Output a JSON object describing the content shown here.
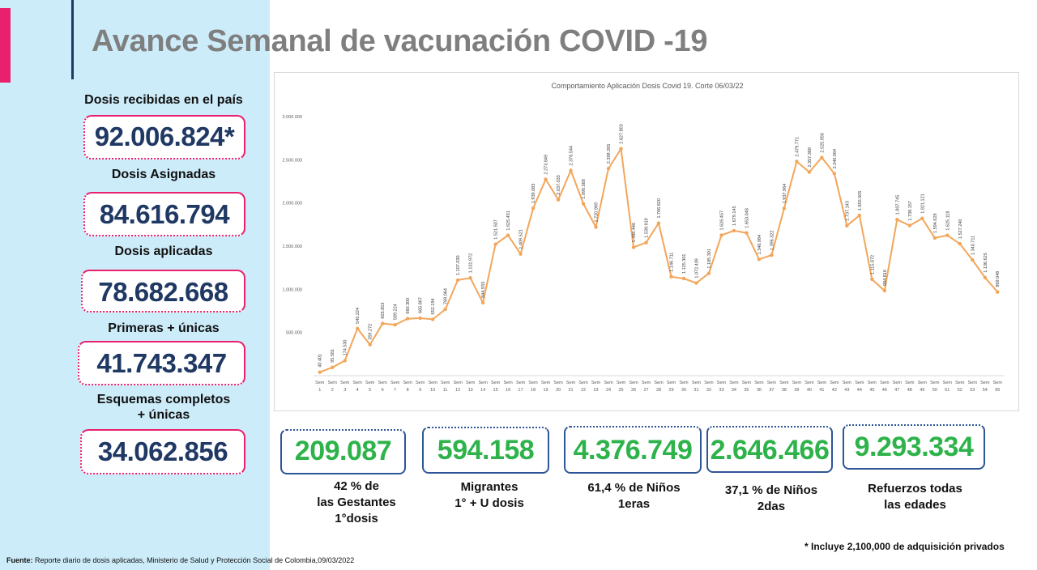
{
  "page": {
    "title": "Avance Semanal de vacunación COVID -19",
    "footnote": "* Incluye 2,100,000 de adquisición privados",
    "source_label": "Fuente:",
    "source_text": " Reporte diario de dosis aplicadas, Ministerio de Salud y Protección Social de Colombia,09/03/2022"
  },
  "colors": {
    "accent": "#e8206e",
    "panel": "#cdecfa",
    "line": "#f2a65a",
    "green": "#2db34a",
    "navy": "#1f3864"
  },
  "stats": [
    {
      "label": "Dosis recibidas en el país",
      "value": "92.006.824*"
    },
    {
      "label": "Dosis Asignadas",
      "value": "84.616.794"
    },
    {
      "label": "Dosis aplicadas",
      "value": "78.682.668"
    },
    {
      "label": "Primeras + únicas",
      "value": "41.743.347"
    },
    {
      "label_line1": "Esquemas completos",
      "label_line2": "+ únicas",
      "value": "34.062.856"
    }
  ],
  "bottom_stats": [
    {
      "value": "209.087",
      "line1": "42 %  de",
      "line2": "las Gestantes",
      "line3": "1°dosis"
    },
    {
      "value": "594.158",
      "line1": "Migrantes",
      "line2": "1° + U dosis"
    },
    {
      "value": "4.376.749",
      "line1": "61,4 % de Niños",
      "line2": "1eras"
    },
    {
      "value": "2.646.466",
      "line1": "37,1 %  de Niños",
      "line2": "2das"
    },
    {
      "value": "9.293.334",
      "line1": "Refuerzos todas",
      "line2": "las edades"
    }
  ],
  "chart_data": {
    "type": "line",
    "title": "Comportamiento Aplicación Dosis Covid 19. Corte 06/03/22",
    "categories": [
      "Sem 1",
      "Sem 2",
      "Sem 3",
      "Sem 4",
      "Sem 5",
      "Sem 6",
      "Sem 7",
      "Sem 8",
      "Sem 9",
      "Sem 10",
      "Sem 11",
      "Sem 12",
      "Sem 13",
      "Sem 14",
      "Sem 15",
      "Sem 16",
      "Sem 17",
      "Sem 18",
      "Sem 19",
      "Sem 20",
      "Sem 21",
      "Sem 22",
      "Sem 23",
      "Sem 24",
      "Sem 25",
      "Sem 26",
      "Sem 27",
      "Sem 28",
      "Sem 29",
      "Sem 30",
      "Sem 31",
      "Sem 32",
      "Sem 33",
      "Sem 34",
      "Sem 35",
      "Sem 36",
      "Sem 37",
      "Sem 38",
      "Sem 39",
      "Sem 40",
      "Sem 41",
      "Sem 42",
      "Sem 43",
      "Sem 44",
      "Sem 45",
      "Sem 46",
      "Sem 47",
      "Sem 48",
      "Sem 49",
      "Sem 50",
      "Sem 51",
      "Sem 52",
      "Sem 53",
      "Sem 54",
      "Sem 55"
    ],
    "tick_top": "Sem",
    "values": [
      40401,
      95581,
      174530,
      545224,
      359272,
      603853,
      589224,
      660300,
      665867,
      652194,
      769064,
      1107030,
      1131972,
      844933,
      1521507,
      1625451,
      1409521,
      1939083,
      2273849,
      2037033,
      2376544,
      1990568,
      1720969,
      2398265,
      2627803,
      1486446,
      1539919,
      1766820,
      1146711,
      1125301,
      1072409,
      1185301,
      1626457,
      1679145,
      1653048,
      1346984,
      1396322,
      1937964,
      2479771,
      2357368,
      2525956,
      2340064,
      1737143,
      1855505,
      1115872,
      984816,
      1807745,
      1738157,
      1821121,
      1594629,
      1625118,
      1527240,
      1340711,
      1136625,
      969048
    ],
    "point_labels": [
      "40.401",
      "95.581",
      "174.530",
      "545.224",
      "359.272",
      "603.853",
      "589.224",
      "660.300",
      "665.867",
      "652.194",
      "769.064",
      "1.107.030",
      "1.131.972",
      "844.933",
      "1.521.507",
      "1.625.451",
      "1.409.521",
      "1.939.083",
      "2.273.849",
      "2.037.033",
      "2.376.544",
      "1.990.568",
      "1.720.969",
      "2.398.265",
      "2.627.803",
      "1.486.446",
      "1.539.919",
      "1.766.820",
      "1.146.711",
      "1.125.301",
      "1.072.409",
      "1.185.301",
      "1.626.457",
      "1.679.145",
      "1.653.048",
      "1.346.984",
      "1.396.322",
      "1.937.964",
      "2.479.771",
      "2.357.368",
      "2.525.956",
      "2.340.064",
      "1.737.143",
      "1.855.505",
      "1.115.872",
      "984.816",
      "1.807.745",
      "1.738.157",
      "1.821.121",
      "1.594.629",
      "1.625.118",
      "1.527.240",
      "1.340.711",
      "1.136.625",
      "969.048"
    ],
    "ylim": [
      0,
      3000000
    ],
    "yticks": [
      500000,
      1000000,
      1500000,
      2000000,
      2500000,
      3000000
    ],
    "ytick_labels": [
      "500.000",
      "1.000.000",
      "1.500.000",
      "2.000.000",
      "2.500.000",
      "3.000.000"
    ],
    "grid": false
  }
}
